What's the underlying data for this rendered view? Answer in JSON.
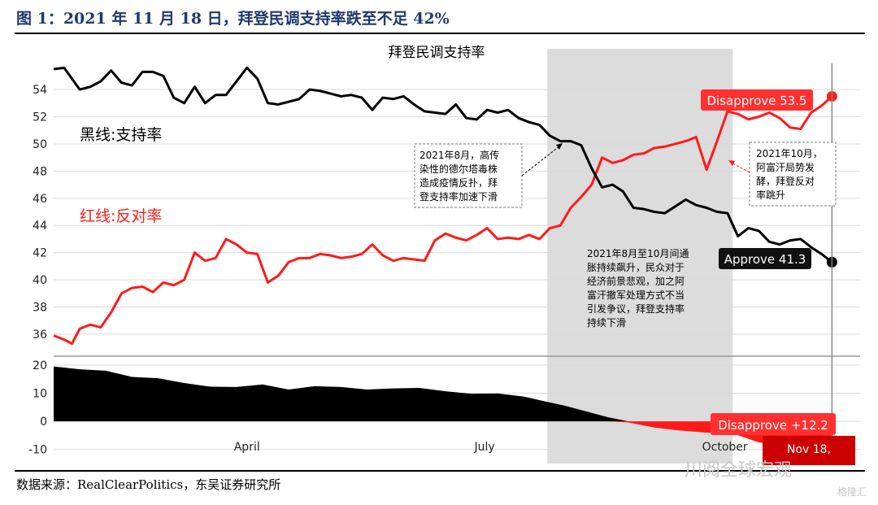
{
  "figure_title": "图 1：2021 年 11 月 18 日，拜登民调支持率跌至不足 42%",
  "source_note": "数据来源：RealClearPolitics，东吴证券研究所",
  "watermark": "川阅全球宏观",
  "watermark2": "格隆汇",
  "colors": {
    "approve": "#000000",
    "disapprove": "#ff1a1a",
    "shade": "#dcdcdc",
    "title_blue": "#1f3a6e"
  },
  "chart_data": {
    "type": "line",
    "title": "拜登民调支持率",
    "upper_y_ticks": [
      36,
      38,
      40,
      42,
      44,
      46,
      48,
      50,
      52,
      54
    ],
    "upper_ylim": [
      34.5,
      55.8
    ],
    "lower_y_ticks": [
      -10,
      0,
      10,
      20
    ],
    "lower_ylim": [
      -15,
      22
    ],
    "x_ticks": [
      {
        "label": "April",
        "day": 74
      },
      {
        "label": "July",
        "day": 165
      },
      {
        "label": "October",
        "day": 257
      }
    ],
    "xlim": [
      0,
      301
    ],
    "legend_approve": "黑线:支持率",
    "legend_disapprove": "红线:反对率",
    "shaded_span": [
      189,
      260
    ],
    "series": [
      {
        "key": "approve",
        "x": [
          0,
          4,
          7,
          10,
          14,
          18,
          22,
          26,
          30,
          34,
          38,
          42,
          46,
          50,
          54,
          58,
          62,
          66,
          70,
          74,
          78,
          82,
          86,
          90,
          94,
          98,
          102,
          106,
          110,
          114,
          118,
          122,
          126,
          130,
          134,
          138,
          142,
          146,
          150,
          154,
          158,
          162,
          166,
          170,
          174,
          178,
          182,
          186,
          190,
          194,
          198,
          202,
          206,
          210,
          214,
          218,
          222,
          226,
          230,
          234,
          238,
          242,
          246,
          250,
          254,
          258,
          262,
          266,
          270,
          274,
          278,
          282,
          286,
          290,
          294,
          298
        ],
        "y": [
          55.5,
          55.6,
          54.8,
          54.0,
          54.2,
          54.6,
          55.4,
          54.5,
          54.3,
          55.3,
          55.3,
          55.0,
          53.4,
          53.0,
          54.2,
          53.0,
          53.6,
          53.6,
          54.6,
          55.6,
          54.8,
          53.0,
          52.9,
          53.1,
          53.3,
          54.0,
          53.9,
          53.7,
          53.5,
          53.6,
          53.4,
          52.5,
          53.4,
          53.3,
          53.5,
          52.9,
          52.4,
          52.3,
          52.2,
          52.9,
          51.9,
          51.8,
          52.5,
          52.3,
          52.5,
          51.9,
          51.6,
          51.4,
          50.6,
          50.2,
          50.2,
          49.9,
          48.2,
          46.8,
          47.0,
          46.5,
          45.3,
          45.2,
          45.0,
          44.9,
          45.4,
          45.9,
          45.5,
          45.3,
          45.0,
          44.9,
          43.2,
          43.8,
          43.6,
          42.8,
          42.6,
          42.9,
          43.0,
          42.4,
          41.9,
          41.3
        ]
      },
      {
        "key": "disapprove",
        "x": [
          0,
          4,
          7,
          10,
          14,
          18,
          22,
          26,
          30,
          34,
          38,
          42,
          46,
          50,
          54,
          58,
          62,
          66,
          70,
          74,
          78,
          82,
          86,
          90,
          94,
          98,
          102,
          106,
          110,
          114,
          118,
          122,
          126,
          130,
          134,
          138,
          142,
          146,
          150,
          154,
          158,
          162,
          166,
          170,
          174,
          178,
          182,
          186,
          190,
          194,
          198,
          202,
          206,
          210,
          214,
          218,
          222,
          226,
          230,
          234,
          238,
          242,
          246,
          250,
          254,
          258,
          262,
          266,
          270,
          274,
          278,
          282,
          286,
          290,
          294,
          298
        ],
        "y": [
          35.9,
          35.6,
          35.3,
          36.4,
          36.7,
          36.5,
          37.6,
          39.0,
          39.4,
          39.5,
          39.1,
          39.8,
          39.6,
          40.0,
          42.0,
          41.4,
          41.6,
          43.0,
          42.6,
          42.0,
          41.9,
          39.8,
          40.3,
          41.3,
          41.6,
          41.6,
          41.9,
          41.8,
          41.6,
          41.7,
          41.9,
          42.6,
          41.8,
          41.4,
          41.6,
          41.5,
          41.4,
          42.9,
          43.4,
          43.1,
          42.9,
          43.3,
          43.8,
          43.0,
          43.1,
          43.0,
          43.3,
          43.0,
          43.8,
          44.0,
          45.3,
          46.1,
          47.0,
          49.0,
          48.6,
          48.8,
          49.2,
          49.3,
          49.7,
          49.8,
          50.0,
          50.2,
          50.5,
          48.1,
          50.2,
          52.4,
          52.2,
          51.8,
          52.0,
          52.3,
          51.9,
          51.2,
          51.1,
          52.3,
          52.8,
          53.5
        ]
      },
      {
        "key": "spread",
        "x": [
          0,
          10,
          20,
          30,
          40,
          50,
          60,
          70,
          80,
          90,
          100,
          110,
          120,
          130,
          140,
          150,
          160,
          170,
          180,
          188,
          196,
          204,
          212,
          220,
          230,
          240,
          250,
          260,
          270,
          280,
          290,
          298
        ],
        "y": [
          19.5,
          18.5,
          18.0,
          15.8,
          15.3,
          13.6,
          12.3,
          12.2,
          13.1,
          11.3,
          12.5,
          12.2,
          11.3,
          11.7,
          11.9,
          10.7,
          9.8,
          9.9,
          8.8,
          7.1,
          5.5,
          3.5,
          1.5,
          -0.4,
          -2.2,
          -3.3,
          -4.0,
          -4.3,
          -7.5,
          -8.8,
          -10.2,
          -12.2
        ]
      }
    ],
    "annotations": [
      {
        "key": "delta_note",
        "lines": [
          "2021年8月，高传",
          "染性的德尔塔毒株",
          "造成疫情反扑，拜",
          "登支持率加速下滑"
        ]
      },
      {
        "key": "afghan_note",
        "lines": [
          "2021年10月，",
          "阿富汗局势发",
          "酵，拜登反对",
          "率跳升"
        ]
      },
      {
        "key": "span_note",
        "lines": [
          "2021年8月至10月间通",
          "胀持续飙升，民众对于",
          "经济前景悲观，加之阿",
          "富汗撤军处理方式不当",
          "引发争议，拜登支持率",
          "持续下滑"
        ]
      }
    ],
    "end_labels": {
      "disapprove": "Disapprove 53.5",
      "approve": "Approve 41.3",
      "spread": "Disapprove +12.2",
      "date": "Nov 18,"
    }
  }
}
